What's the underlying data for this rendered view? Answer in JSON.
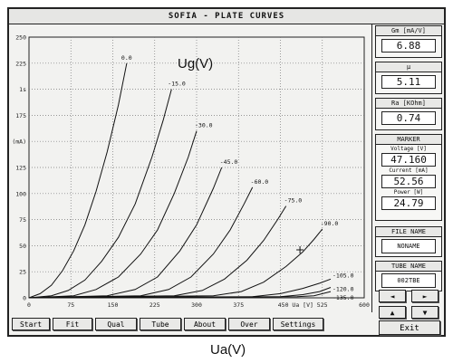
{
  "window": {
    "title": "SOFIA - PLATE CURVES"
  },
  "annotations": {
    "y_axis_label": "Ug(V)",
    "x_axis_label": "Ua(V)"
  },
  "plot": {
    "y_scale_labels": [
      "250",
      "225",
      "1s",
      "175",
      "(mA)",
      "125",
      "100",
      "75",
      "50",
      "25",
      "0"
    ],
    "x_tick_labels": [
      "0",
      "75",
      "150",
      "225",
      "300",
      "375",
      "450 Ua [V] 525",
      "600"
    ],
    "curve_labels": [
      "0.0",
      "-15.0",
      "-30.0",
      "-45.0",
      "-60.0",
      "-75.0",
      "-90.0",
      "-105.0",
      "-120.0",
      "-135.0"
    ]
  },
  "chart_data": {
    "type": "line",
    "xlabel": "Ua [V]",
    "ylabel": "(mA)",
    "xlim": [
      0,
      600
    ],
    "ylim": [
      0,
      250
    ],
    "grid": true,
    "series": [
      {
        "name": "0.0",
        "x": [
          0,
          20,
          40,
          60,
          80,
          100,
          120,
          140,
          160,
          175
        ],
        "y": [
          0,
          4,
          12,
          26,
          45,
          70,
          102,
          140,
          185,
          225
        ]
      },
      {
        "name": "-15.0",
        "x": [
          0,
          40,
          70,
          100,
          130,
          160,
          190,
          220,
          240,
          255
        ],
        "y": [
          0,
          2,
          7,
          17,
          35,
          58,
          90,
          135,
          170,
          200
        ]
      },
      {
        "name": "-30.0",
        "x": [
          0,
          80,
          120,
          160,
          200,
          230,
          260,
          285,
          300
        ],
        "y": [
          0,
          2,
          8,
          20,
          42,
          65,
          100,
          135,
          160
        ]
      },
      {
        "name": "-45.0",
        "x": [
          0,
          140,
          190,
          230,
          270,
          300,
          330,
          345
        ],
        "y": [
          0,
          2,
          8,
          20,
          45,
          70,
          105,
          125
        ]
      },
      {
        "name": "-60.0",
        "x": [
          0,
          200,
          250,
          290,
          330,
          360,
          385,
          400
        ],
        "y": [
          0,
          2,
          8,
          20,
          42,
          65,
          90,
          106
        ]
      },
      {
        "name": "-75.0",
        "x": [
          0,
          260,
          310,
          350,
          390,
          420,
          445,
          460
        ],
        "y": [
          0,
          2,
          7,
          18,
          36,
          55,
          75,
          88
        ]
      },
      {
        "name": "-90.0",
        "x": [
          0,
          330,
          380,
          420,
          460,
          490,
          510,
          525
        ],
        "y": [
          0,
          2,
          6,
          15,
          30,
          44,
          56,
          66
        ]
      },
      {
        "name": "-105.0",
        "x": [
          0,
          400,
          450,
          490,
          520,
          540
        ],
        "y": [
          0,
          1,
          4,
          9,
          14,
          18
        ]
      },
      {
        "name": "-120.0",
        "x": [
          0,
          450,
          490,
          520,
          540
        ],
        "y": [
          0,
          1,
          3,
          6,
          10
        ]
      },
      {
        "name": "-135.0",
        "x": [
          0,
          480,
          510,
          540
        ],
        "y": [
          0,
          1,
          2,
          6
        ]
      }
    ]
  },
  "panels": {
    "gm": {
      "label": "Gm [mA/V]",
      "value": "6.88"
    },
    "mu": {
      "label": "μ",
      "value": "5.11"
    },
    "ra": {
      "label": "Ra [KOhm]",
      "value": "0.74"
    },
    "marker": {
      "label": "MARKER",
      "voltage_label": "Voltage [V]",
      "voltage": "47.160",
      "current_label": "Current [mA]",
      "current": "52.56",
      "power_label": "Power [W]",
      "power": "24.79"
    },
    "file": {
      "label": "FILE NAME",
      "value": "NONAME"
    },
    "tube": {
      "label": "TUBE NAME",
      "value": "002TBE"
    }
  },
  "arrows": {
    "left": "◄",
    "right": "►",
    "up": "▲",
    "down": "▼"
  },
  "buttons": {
    "start": "Start",
    "fit": "Fit",
    "qual": "Qual",
    "tube": "Tube",
    "about": "About",
    "over": "Over",
    "settings": "Settings",
    "exit": "Exit"
  }
}
